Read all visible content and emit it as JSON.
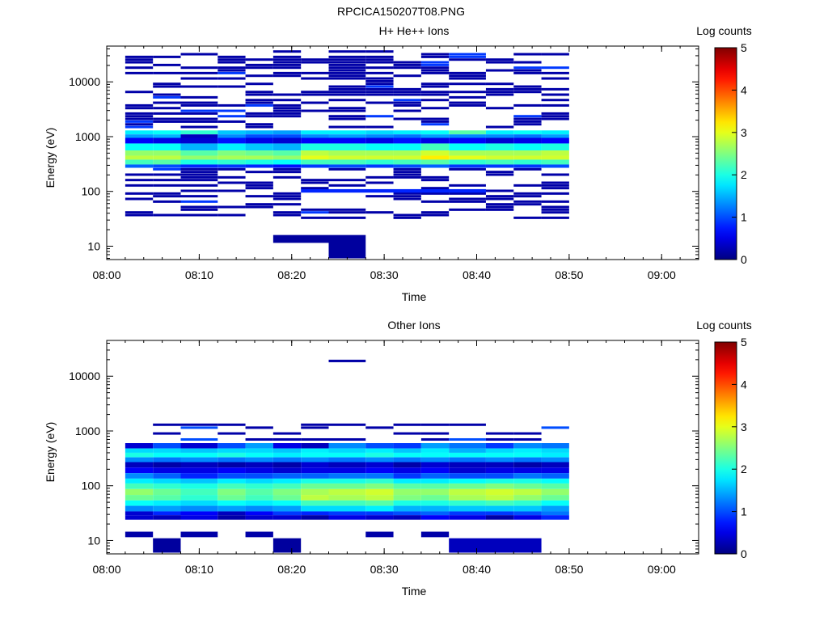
{
  "figure_title": "RPCICA150207T08.PNG",
  "chart_data": [
    {
      "type": "heatmap",
      "title": "H+ He++ Ions",
      "xlabel": "Time",
      "ylabel": "Energy (eV)",
      "x_range": [
        "08:00",
        "09:04"
      ],
      "x_ticks": [
        "08:00",
        "08:10",
        "08:20",
        "08:30",
        "08:40",
        "08:50",
        "09:00"
      ],
      "y_scale": "log",
      "y_range": [
        5.7,
        45000
      ],
      "y_ticks": [
        "10",
        "100",
        "1000",
        "10000"
      ],
      "grid": false,
      "colorbar": {
        "label": "Log counts",
        "range": [
          0,
          5
        ],
        "ticks": [
          "0",
          "1",
          "2",
          "3",
          "4",
          "5"
        ]
      },
      "time_bins": [
        "08:02",
        "08:05",
        "08:08",
        "08:12",
        "08:15",
        "08:18",
        "08:21",
        "08:24",
        "08:28",
        "08:31",
        "08:34",
        "08:37",
        "08:41",
        "08:44",
        "08:47"
      ],
      "data_end": "08:50",
      "bands": [
        {
          "e_min": 1100,
          "e_max": 1300,
          "levels": [
            1.8,
            1.9,
            2.1,
            1.6,
            1.5,
            1.4,
            1.8,
            1.8,
            1.7,
            1.8,
            1.9,
            2.3,
            1.8,
            1.9,
            1.8
          ]
        },
        {
          "e_min": 950,
          "e_max": 1100,
          "levels": [
            1.4,
            1.5,
            0.3,
            1.3,
            1.0,
            1.0,
            1.3,
            1.4,
            1.3,
            1.2,
            1.4,
            1.3,
            1.3,
            1.2,
            1.4
          ]
        },
        {
          "e_min": 750,
          "e_max": 950,
          "levels": [
            0.6,
            0.5,
            0.4,
            0.7,
            0.5,
            0.4,
            0.6,
            0.6,
            0.5,
            0.7,
            0.5,
            0.6,
            0.4,
            0.5,
            0.6
          ]
        },
        {
          "e_min": 560,
          "e_max": 750,
          "levels": [
            1.9,
            1.9,
            1.5,
            1.8,
            1.6,
            1.5,
            2.0,
            2.0,
            1.9,
            1.9,
            2.2,
            1.9,
            2.0,
            1.9,
            2.0
          ]
        },
        {
          "e_min": 450,
          "e_max": 560,
          "levels": [
            2.6,
            2.6,
            2.3,
            2.5,
            2.4,
            2.3,
            2.8,
            2.7,
            2.7,
            2.7,
            2.9,
            2.7,
            2.7,
            2.7,
            2.8
          ]
        },
        {
          "e_min": 380,
          "e_max": 450,
          "levels": [
            2.8,
            2.8,
            2.6,
            2.7,
            2.7,
            2.6,
            3.0,
            2.9,
            2.9,
            2.9,
            3.2,
            3.0,
            2.9,
            2.9,
            2.9
          ]
        },
        {
          "e_min": 310,
          "e_max": 380,
          "levels": [
            2.2,
            2.3,
            2.0,
            2.1,
            2.0,
            1.9,
            2.2,
            2.2,
            2.1,
            2.2,
            2.3,
            2.1,
            2.2,
            2.1,
            2.2
          ]
        },
        {
          "e_min": 270,
          "e_max": 310,
          "levels": [
            1.1,
            1.0,
            0.8,
            0.9,
            0.8,
            0.7,
            0.9,
            1.0,
            0.9,
            1.0,
            1.1,
            0.9,
            0.9,
            0.9,
            1.0
          ]
        }
      ],
      "sparse": [
        {
          "e_min": 16,
          "e_max": 6,
          "bins": [
            7,
            7
          ],
          "level": 0.15
        },
        {
          "e_min": 11.5,
          "e_max": 16,
          "bins": [
            5,
            6
          ],
          "level": 0.15
        },
        {
          "e_min": 95,
          "e_max": 110,
          "bins": [
            6,
            11
          ],
          "level": 0.8
        }
      ]
    },
    {
      "type": "heatmap",
      "title": "Other Ions",
      "xlabel": "Time",
      "ylabel": "Energy (eV)",
      "x_range": [
        "08:00",
        "09:04"
      ],
      "x_ticks": [
        "08:00",
        "08:10",
        "08:20",
        "08:30",
        "08:40",
        "08:50",
        "09:00"
      ],
      "y_scale": "log",
      "y_range": [
        5.7,
        45000
      ],
      "y_ticks": [
        "10",
        "100",
        "1000",
        "10000"
      ],
      "grid": false,
      "colorbar": {
        "label": "Log counts",
        "range": [
          0,
          5
        ],
        "ticks": [
          "0",
          "1",
          "2",
          "3",
          "4",
          "5"
        ]
      },
      "time_bins": [
        "08:02",
        "08:05",
        "08:08",
        "08:12",
        "08:15",
        "08:18",
        "08:21",
        "08:24",
        "08:28",
        "08:31",
        "08:34",
        "08:37",
        "08:41",
        "08:44",
        "08:47"
      ],
      "data_end": "08:50",
      "bands": [
        {
          "e_min": 480,
          "e_max": 600,
          "levels": [
            0.4,
            1.0,
            0.4,
            1.0,
            1.4,
            0.5,
            0.3,
            1.3,
            1.0,
            0.9,
            1.4,
            1.2,
            0.9,
            1.3,
            1.2
          ]
        },
        {
          "e_min": 400,
          "e_max": 480,
          "levels": [
            1.7,
            1.7,
            1.6,
            1.7,
            1.7,
            1.6,
            1.8,
            1.7,
            1.8,
            1.6,
            1.8,
            1.5,
            1.7,
            1.8,
            1.7
          ]
        },
        {
          "e_min": 330,
          "e_max": 400,
          "levels": [
            2.0,
            1.9,
            1.9,
            2.0,
            1.9,
            1.8,
            1.9,
            1.9,
            2.0,
            1.9,
            1.9,
            1.9,
            1.9,
            1.9,
            1.8
          ]
        },
        {
          "e_min": 270,
          "e_max": 330,
          "levels": [
            1.3,
            1.2,
            1.3,
            1.2,
            1.3,
            1.2,
            1.3,
            1.2,
            1.3,
            1.2,
            1.3,
            1.2,
            1.3,
            1.2,
            1.3
          ]
        },
        {
          "e_min": 215,
          "e_max": 270,
          "levels": [
            0.3,
            0.2,
            0.3,
            0.2,
            0.3,
            0.2,
            0.4,
            0.3,
            0.4,
            0.2,
            0.4,
            0.3,
            0.3,
            0.2,
            0.3
          ]
        },
        {
          "e_min": 170,
          "e_max": 215,
          "levels": [
            0.6,
            0.5,
            0.5,
            0.6,
            0.5,
            0.4,
            0.5,
            0.5,
            0.6,
            0.5,
            0.6,
            0.4,
            0.5,
            0.5,
            0.5
          ]
        },
        {
          "e_min": 135,
          "e_max": 170,
          "levels": [
            1.3,
            1.1,
            0.8,
            1.0,
            1.0,
            1.1,
            1.1,
            1.2,
            1.2,
            0.9,
            1.1,
            1.0,
            1.0,
            1.2,
            1.1
          ]
        },
        {
          "e_min": 110,
          "e_max": 135,
          "levels": [
            1.8,
            1.7,
            1.6,
            1.8,
            1.7,
            1.8,
            2.0,
            2.0,
            2.1,
            1.8,
            1.8,
            1.9,
            2.0,
            2.0,
            1.9
          ]
        },
        {
          "e_min": 87,
          "e_max": 110,
          "levels": [
            2.2,
            2.1,
            2.0,
            2.2,
            2.1,
            2.2,
            2.4,
            2.4,
            2.5,
            2.3,
            2.3,
            2.4,
            2.5,
            2.4,
            2.3
          ]
        },
        {
          "e_min": 68,
          "e_max": 87,
          "levels": [
            2.6,
            2.4,
            2.2,
            2.5,
            2.3,
            2.5,
            2.7,
            2.8,
            2.9,
            2.6,
            2.6,
            2.8,
            2.9,
            2.8,
            2.6
          ]
        },
        {
          "e_min": 54,
          "e_max": 68,
          "levels": [
            2.4,
            2.3,
            2.1,
            2.4,
            2.2,
            2.4,
            2.8,
            2.7,
            2.8,
            2.5,
            2.4,
            2.7,
            2.8,
            2.6,
            2.4
          ]
        },
        {
          "e_min": 43,
          "e_max": 54,
          "levels": [
            1.9,
            1.8,
            1.7,
            1.9,
            1.8,
            1.9,
            2.2,
            2.2,
            2.3,
            2.0,
            2.0,
            2.1,
            2.2,
            2.1,
            1.9
          ]
        },
        {
          "e_min": 34,
          "e_max": 43,
          "levels": [
            1.3,
            1.4,
            1.3,
            1.4,
            1.3,
            1.4,
            1.7,
            1.7,
            1.8,
            1.5,
            1.5,
            1.6,
            1.6,
            1.6,
            1.4
          ]
        },
        {
          "e_min": 29,
          "e_max": 34,
          "levels": [
            0.4,
            0.8,
            0.6,
            0.3,
            0.6,
            0.9,
            0.8,
            0.9,
            0.9,
            1.0,
            1.1,
            0.9,
            0.9,
            1.0,
            1.2
          ]
        },
        {
          "e_min": 24,
          "e_max": 29,
          "levels": [
            0.4,
            0.3,
            0.5,
            0.2,
            0.4,
            0.4,
            0.2,
            0.5,
            0.4,
            0.3,
            0.6,
            0.5,
            0.2,
            0.5,
            0.8
          ]
        }
      ],
      "sparse": [
        {
          "e_min": 18000,
          "e_max": 20000,
          "bins": [
            7,
            7
          ],
          "level": 0.2
        },
        {
          "e_min": 11.5,
          "e_max": 14.5,
          "bins": [
            0,
            0
          ],
          "level": 0.2
        },
        {
          "e_min": 6,
          "e_max": 11,
          "bins": [
            1,
            1
          ],
          "level": 0.15
        },
        {
          "e_min": 11.5,
          "e_max": 14.5,
          "bins": [
            2,
            2
          ],
          "level": 0.2
        },
        {
          "e_min": 11.5,
          "e_max": 14.5,
          "bins": [
            4,
            4
          ],
          "level": 0.2
        },
        {
          "e_min": 6,
          "e_max": 11,
          "bins": [
            5,
            5
          ],
          "level": 0.15
        },
        {
          "e_min": 11.5,
          "e_max": 14.5,
          "bins": [
            8,
            8
          ],
          "level": 0.2
        },
        {
          "e_min": 11.5,
          "e_max": 14.5,
          "bins": [
            10,
            10
          ],
          "level": 0.2
        },
        {
          "e_min": 6,
          "e_max": 11,
          "bins": [
            11,
            13
          ],
          "level": 0.3
        }
      ]
    }
  ]
}
